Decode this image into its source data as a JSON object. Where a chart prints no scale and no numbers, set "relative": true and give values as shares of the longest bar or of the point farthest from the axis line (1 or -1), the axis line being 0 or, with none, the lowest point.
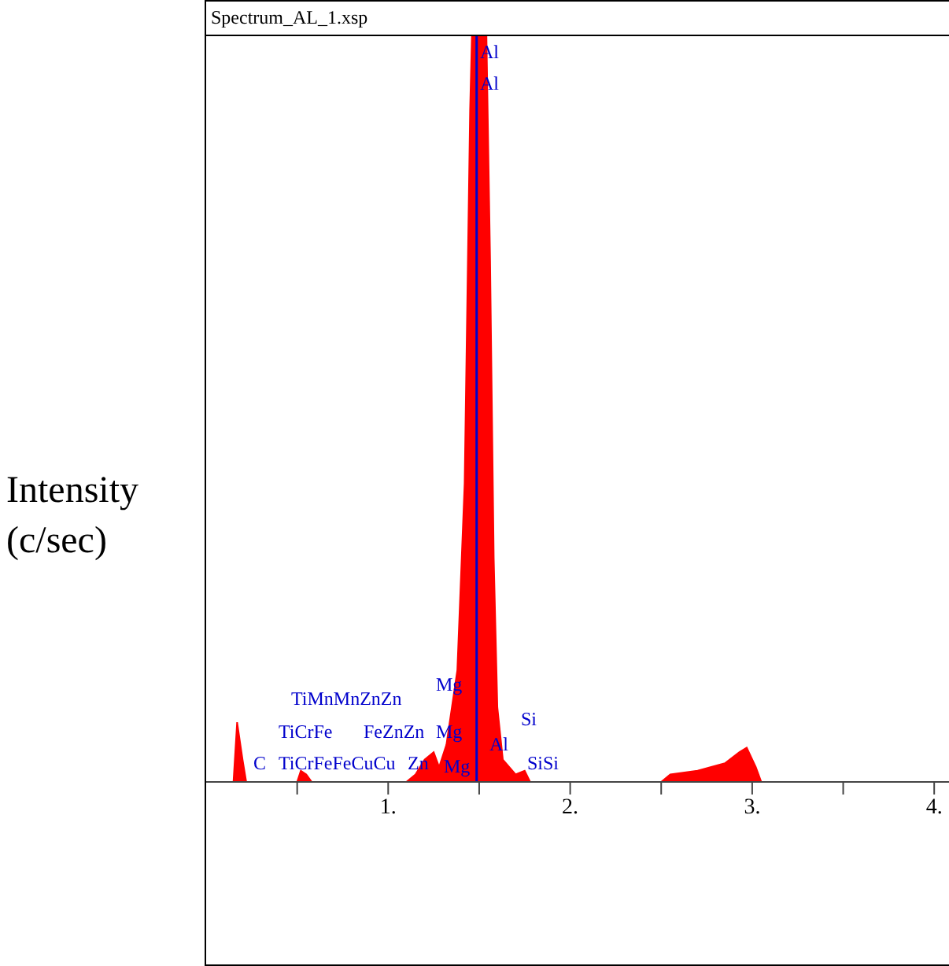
{
  "chart_data": {
    "type": "area",
    "title": "Spectrum_AL_1.xsp",
    "ylabel": "Intensity (c/sec)",
    "relative": true,
    "x": [
      0.1,
      0.15,
      0.17,
      0.2,
      0.22,
      0.5,
      0.52,
      0.55,
      0.58,
      1.1,
      1.15,
      1.2,
      1.25,
      1.28,
      1.32,
      1.38,
      1.42,
      1.45,
      1.46,
      1.54,
      1.56,
      1.58,
      1.6,
      1.63,
      1.7,
      1.75,
      1.78,
      2.5,
      2.55,
      2.7,
      2.85,
      2.93,
      2.97,
      3.02,
      3.05,
      4.09
    ],
    "series": [
      {
        "color": "#ff0000",
        "values": [
          0,
          0,
          0.08,
          0.03,
          0,
          0,
          0.015,
          0.01,
          0,
          0,
          0.01,
          0.03,
          0.04,
          0.02,
          0.05,
          0.15,
          0.4,
          0.9,
          1,
          1,
          0.7,
          0.3,
          0.1,
          0.03,
          0.01,
          0.015,
          0,
          0,
          0.01,
          0.015,
          0.025,
          0.04,
          0.046,
          0.02,
          0,
          0
        ]
      }
    ],
    "xlim": [
      0,
      4.09
    ],
    "xticks": [
      {
        "value": 0.5,
        "label": null
      },
      {
        "value": 1,
        "label": "1."
      },
      {
        "value": 1.5,
        "label": null
      },
      {
        "value": 2,
        "label": "2."
      },
      {
        "value": 2.5,
        "label": null
      },
      {
        "value": 3,
        "label": "3."
      },
      {
        "value": 3.5,
        "label": null
      },
      {
        "value": 4,
        "label": "4."
      }
    ],
    "ref_lines": [
      {
        "axis": "x",
        "value": 1.486,
        "color": "#0000cc"
      }
    ],
    "annotations": [
      "Al",
      "Al",
      "C",
      "TiCrFeFeCuCu",
      "TiCrFe",
      "FeZnZn",
      "TiMnMnZnZn",
      "Zn",
      "Mg",
      "Mg",
      "Mg",
      "Al",
      "Si",
      "SiSi"
    ]
  }
}
